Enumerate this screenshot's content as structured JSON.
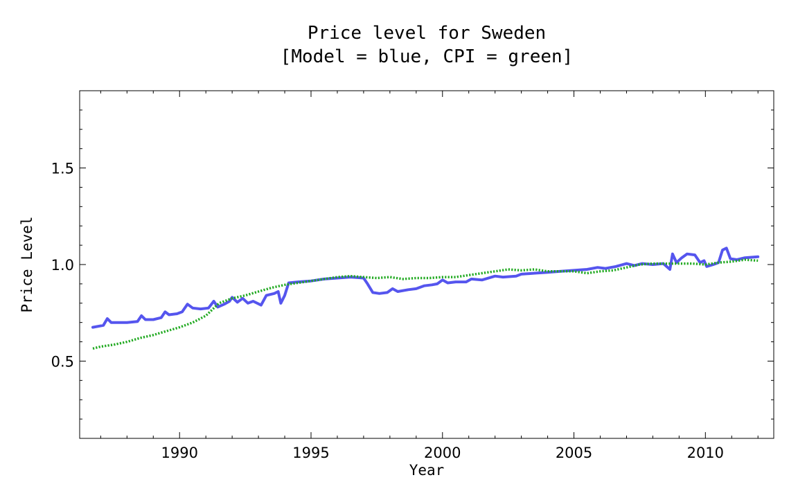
{
  "chart_data": {
    "type": "line",
    "title": "Price level for Sweden",
    "subtitle": "[Model = blue, CPI = green]",
    "xlabel": "Year",
    "ylabel": "Price Level",
    "xlim": [
      1986.2,
      2012.6
    ],
    "ylim": [
      0.1,
      1.9
    ],
    "xticks": [
      1990,
      1995,
      2000,
      2005,
      2010
    ],
    "xtick_labels": [
      "1990",
      "1995",
      "2000",
      "2005",
      "2010"
    ],
    "yticks": [
      0.5,
      1.0,
      1.5
    ],
    "ytick_labels": [
      "0.5",
      "1.0",
      "1.5"
    ],
    "grid": false,
    "legend": "none",
    "series": [
      {
        "color": "#5555ee",
        "style": "solid",
        "points": [
          [
            1986.7,
            0.675
          ],
          [
            1987.1,
            0.685
          ],
          [
            1987.25,
            0.72
          ],
          [
            1987.4,
            0.7
          ],
          [
            1988.0,
            0.7
          ],
          [
            1988.4,
            0.705
          ],
          [
            1988.55,
            0.735
          ],
          [
            1988.7,
            0.715
          ],
          [
            1989.0,
            0.715
          ],
          [
            1989.3,
            0.725
          ],
          [
            1989.45,
            0.755
          ],
          [
            1989.6,
            0.74
          ],
          [
            1989.9,
            0.745
          ],
          [
            1990.1,
            0.755
          ],
          [
            1990.3,
            0.795
          ],
          [
            1990.5,
            0.775
          ],
          [
            1990.8,
            0.77
          ],
          [
            1991.1,
            0.775
          ],
          [
            1991.3,
            0.81
          ],
          [
            1991.45,
            0.78
          ],
          [
            1991.7,
            0.795
          ],
          [
            1991.9,
            0.81
          ],
          [
            1992.0,
            0.83
          ],
          [
            1992.2,
            0.805
          ],
          [
            1992.4,
            0.825
          ],
          [
            1992.6,
            0.8
          ],
          [
            1992.8,
            0.81
          ],
          [
            1993.1,
            0.79
          ],
          [
            1993.3,
            0.84
          ],
          [
            1993.6,
            0.85
          ],
          [
            1993.75,
            0.86
          ],
          [
            1993.85,
            0.8
          ],
          [
            1994.0,
            0.84
          ],
          [
            1994.15,
            0.905
          ],
          [
            1994.5,
            0.91
          ],
          [
            1995.0,
            0.915
          ],
          [
            1995.5,
            0.925
          ],
          [
            1996.0,
            0.93
          ],
          [
            1996.5,
            0.935
          ],
          [
            1997.0,
            0.93
          ],
          [
            1997.15,
            0.9
          ],
          [
            1997.35,
            0.855
          ],
          [
            1997.6,
            0.85
          ],
          [
            1997.9,
            0.855
          ],
          [
            1998.1,
            0.875
          ],
          [
            1998.3,
            0.86
          ],
          [
            1998.7,
            0.87
          ],
          [
            1999.0,
            0.875
          ],
          [
            1999.3,
            0.89
          ],
          [
            1999.6,
            0.895
          ],
          [
            1999.8,
            0.9
          ],
          [
            2000.0,
            0.92
          ],
          [
            2000.2,
            0.905
          ],
          [
            2000.5,
            0.91
          ],
          [
            2000.9,
            0.91
          ],
          [
            2001.1,
            0.925
          ],
          [
            2001.5,
            0.92
          ],
          [
            2002.0,
            0.94
          ],
          [
            2002.3,
            0.935
          ],
          [
            2002.8,
            0.94
          ],
          [
            2003.0,
            0.95
          ],
          [
            2003.5,
            0.955
          ],
          [
            2004.0,
            0.96
          ],
          [
            2004.5,
            0.965
          ],
          [
            2005.0,
            0.97
          ],
          [
            2005.5,
            0.975
          ],
          [
            2005.9,
            0.985
          ],
          [
            2006.2,
            0.98
          ],
          [
            2006.6,
            0.99
          ],
          [
            2007.0,
            1.005
          ],
          [
            2007.3,
            0.995
          ],
          [
            2007.6,
            1.005
          ],
          [
            2008.0,
            1.0
          ],
          [
            2008.4,
            1.005
          ],
          [
            2008.65,
            0.975
          ],
          [
            2008.75,
            1.055
          ],
          [
            2008.9,
            1.01
          ],
          [
            2009.1,
            1.035
          ],
          [
            2009.3,
            1.055
          ],
          [
            2009.6,
            1.05
          ],
          [
            2009.8,
            1.01
          ],
          [
            2009.95,
            1.02
          ],
          [
            2010.05,
            0.99
          ],
          [
            2010.3,
            1.0
          ],
          [
            2010.5,
            1.01
          ],
          [
            2010.65,
            1.075
          ],
          [
            2010.8,
            1.085
          ],
          [
            2010.95,
            1.03
          ],
          [
            2011.2,
            1.025
          ],
          [
            2011.5,
            1.035
          ],
          [
            2012.0,
            1.04
          ]
        ]
      },
      {
        "color": "#22aa22",
        "style": "dotted",
        "points": [
          [
            1986.7,
            0.565
          ],
          [
            1987.0,
            0.575
          ],
          [
            1987.5,
            0.585
          ],
          [
            1988.0,
            0.6
          ],
          [
            1988.5,
            0.62
          ],
          [
            1989.0,
            0.635
          ],
          [
            1989.5,
            0.655
          ],
          [
            1990.0,
            0.675
          ],
          [
            1990.5,
            0.7
          ],
          [
            1991.0,
            0.735
          ],
          [
            1991.5,
            0.8
          ],
          [
            1992.0,
            0.825
          ],
          [
            1992.5,
            0.84
          ],
          [
            1993.0,
            0.86
          ],
          [
            1993.5,
            0.88
          ],
          [
            1994.0,
            0.895
          ],
          [
            1994.5,
            0.905
          ],
          [
            1995.0,
            0.915
          ],
          [
            1995.5,
            0.925
          ],
          [
            1996.0,
            0.935
          ],
          [
            1996.5,
            0.94
          ],
          [
            1997.0,
            0.935
          ],
          [
            1997.5,
            0.93
          ],
          [
            1998.0,
            0.935
          ],
          [
            1998.5,
            0.925
          ],
          [
            1999.0,
            0.93
          ],
          [
            1999.5,
            0.93
          ],
          [
            2000.0,
            0.935
          ],
          [
            2000.5,
            0.935
          ],
          [
            2001.0,
            0.945
          ],
          [
            2001.5,
            0.955
          ],
          [
            2002.0,
            0.965
          ],
          [
            2002.5,
            0.975
          ],
          [
            2003.0,
            0.97
          ],
          [
            2003.5,
            0.975
          ],
          [
            2004.0,
            0.965
          ],
          [
            2004.5,
            0.965
          ],
          [
            2005.0,
            0.965
          ],
          [
            2005.5,
            0.955
          ],
          [
            2006.0,
            0.965
          ],
          [
            2006.5,
            0.97
          ],
          [
            2007.0,
            0.985
          ],
          [
            2007.5,
            1.0
          ],
          [
            2008.0,
            1.005
          ],
          [
            2008.5,
            1.005
          ],
          [
            2009.0,
            1.005
          ],
          [
            2009.5,
            1.005
          ],
          [
            2010.0,
            1.0
          ],
          [
            2010.5,
            1.01
          ],
          [
            2011.0,
            1.015
          ],
          [
            2011.5,
            1.025
          ],
          [
            2012.0,
            1.02
          ]
        ]
      }
    ]
  }
}
